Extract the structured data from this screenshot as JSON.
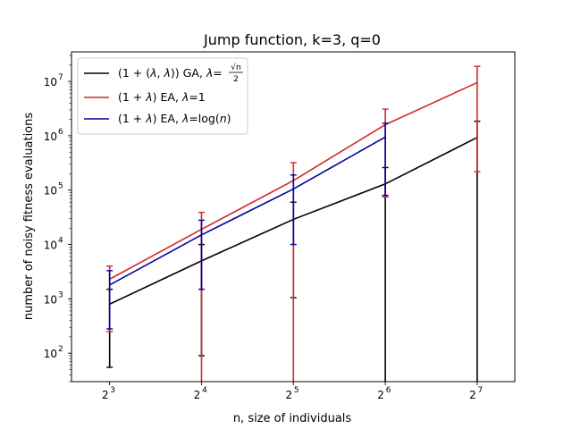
{
  "chart_data": {
    "type": "line",
    "title": "Jump function, k=3, q=0",
    "xlabel": "n, size of individuals",
    "ylabel": "number of noisy fitness evaluations",
    "x": [
      8,
      16,
      32,
      64,
      128
    ],
    "x_ticks": [
      {
        "base": "2",
        "exp": "3"
      },
      {
        "base": "2",
        "exp": "4"
      },
      {
        "base": "2",
        "exp": "5"
      },
      {
        "base": "2",
        "exp": "6"
      },
      {
        "base": "2",
        "exp": "7"
      }
    ],
    "y_ticks": [
      {
        "value": 100,
        "base": "10",
        "exp": "2"
      },
      {
        "value": 1000,
        "base": "10",
        "exp": "3"
      },
      {
        "value": 10000,
        "base": "10",
        "exp": "4"
      },
      {
        "value": 100000,
        "base": "10",
        "exp": "5"
      },
      {
        "value": 1000000,
        "base": "10",
        "exp": "6"
      },
      {
        "value": 10000000,
        "base": "10",
        "exp": "7"
      }
    ],
    "x_scale": "log2",
    "y_scale": "log10",
    "xlim": [
      6,
      170
    ],
    "ylim": [
      30,
      35000000
    ],
    "grid": false,
    "legend_position": "top-left",
    "series": [
      {
        "name": "(1+(λ,λ)) GA, λ=√n/2",
        "color": "#000000",
        "x": [
          8,
          16,
          32,
          64,
          128
        ],
        "values": [
          800,
          5000,
          29000,
          130000,
          930000
        ],
        "err_low": [
          55,
          90,
          1050,
          1,
          1
        ],
        "err_high": [
          1500,
          10000,
          60000,
          260000,
          1850000
        ]
      },
      {
        "name": "(1+λ) EA, λ=1",
        "color": "#d62728",
        "x": [
          8,
          16,
          32,
          64,
          128
        ],
        "values": [
          2300,
          19000,
          150000,
          1600000,
          9500000
        ],
        "err_low": [
          250,
          1,
          1,
          75000,
          220000
        ],
        "err_high": [
          4000,
          39000,
          320000,
          3100000,
          19000000
        ]
      },
      {
        "name": "(1+λ) EA, λ=log(n)",
        "color": "#0000a0",
        "x": [
          8,
          16,
          32,
          64
        ],
        "values": [
          1800,
          15000,
          105000,
          950000
        ],
        "err_low": [
          280,
          1500,
          10000,
          80000
        ],
        "err_high": [
          3300,
          28000,
          190000,
          1700000
        ]
      }
    ]
  },
  "legend": {
    "items": [
      {
        "pre": "(1 + (",
        "lam": "λ",
        "mid": ", ",
        "lam2": "λ",
        "post": ")) GA, ",
        "lam3": "λ",
        "eq": "=",
        "num": "√n",
        "den": "2"
      },
      {
        "pre": "(1 + ",
        "lam": "λ",
        "post": ") EA, ",
        "lam3": "λ",
        "eq": "=1"
      },
      {
        "pre": "(1 + ",
        "lam": "λ",
        "post": ") EA, ",
        "lam3": "λ",
        "eq": "=log(",
        "n": "n",
        "close": ")"
      }
    ]
  }
}
